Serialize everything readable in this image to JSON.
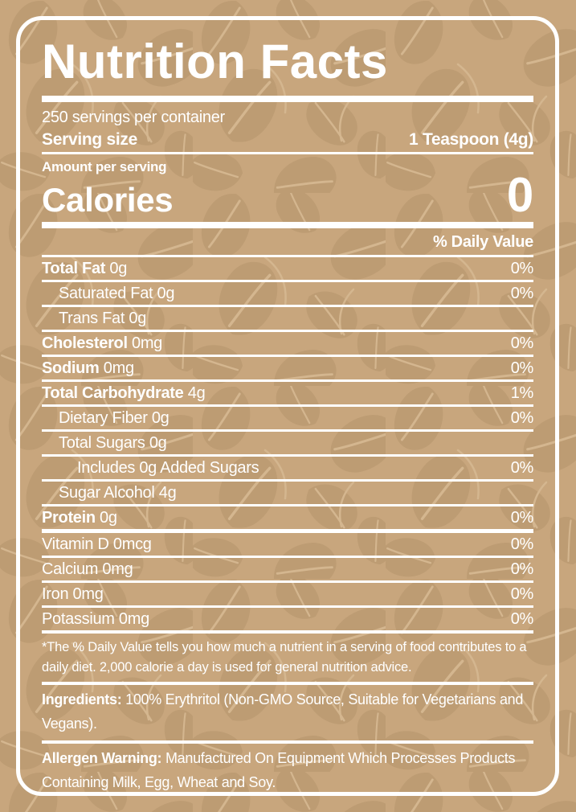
{
  "label": {
    "title": "Nutrition Facts",
    "servings_per_container": "250 servings per container",
    "serving_size_label": "Serving size",
    "serving_size_value": "1 Teaspoon (4g)",
    "amount_per_serving": "Amount per serving",
    "calories_label": "Calories",
    "calories_value": "0",
    "daily_value_header": "% Daily Value",
    "nutrients": [
      {
        "bold": "Total Fat",
        "rest": " 0g",
        "percent": "0%",
        "indent": 0,
        "sep": "thin"
      },
      {
        "bold": "",
        "rest": "Saturated Fat 0g",
        "percent": "0%",
        "indent": 1,
        "sep": "thin"
      },
      {
        "bold": "",
        "rest": "Trans Fat 0g",
        "percent": "",
        "indent": 1,
        "sep": "thin"
      },
      {
        "bold": "Cholesterol",
        "rest": " 0mg",
        "percent": "0%",
        "indent": 0,
        "sep": "thin"
      },
      {
        "bold": "Sodium",
        "rest": " 0mg",
        "percent": "0%",
        "indent": 0,
        "sep": "thin"
      },
      {
        "bold": "Total Carbohydrate",
        "rest": " 4g",
        "percent": "1%",
        "indent": 0,
        "sep": "thin"
      },
      {
        "bold": "",
        "rest": "Dietary Fiber 0g",
        "percent": "0%",
        "indent": 1,
        "sep": "thin"
      },
      {
        "bold": "",
        "rest": "Total Sugars 0g",
        "percent": "",
        "indent": 1,
        "sep": "thin"
      },
      {
        "bold": "",
        "rest": "Includes 0g Added Sugars",
        "percent": "0%",
        "indent": 2,
        "sep": "thin"
      },
      {
        "bold": "",
        "rest": "Sugar Alcohol 4g",
        "percent": "",
        "indent": 1,
        "sep": "thin"
      },
      {
        "bold": "Protein",
        "rest": " 0g",
        "percent": "0%",
        "indent": 0,
        "sep": "thick"
      },
      {
        "bold": "",
        "rest": "Vitamin D 0mcg",
        "percent": "0%",
        "indent": 0,
        "sep": "thin"
      },
      {
        "bold": "",
        "rest": "Calcium 0mg",
        "percent": "0%",
        "indent": 0,
        "sep": "thin"
      },
      {
        "bold": "",
        "rest": "Iron 0mg",
        "percent": "0%",
        "indent": 0,
        "sep": "thin"
      },
      {
        "bold": "",
        "rest": "Potassium 0mg",
        "percent": "0%",
        "indent": 0,
        "sep": "mid"
      }
    ],
    "footnote": "*The % Daily Value tells you how much a nutrient in a serving of food contributes to a daily diet. 2,000 calorie a day is used for general nutrition advice.",
    "ingredients_label": "Ingredients:",
    "ingredients_text": " 100% Erythritol (Non-GMO Source, Suitable for Vegetarians and Vegans).",
    "allergen_label": "Allergen Warning:",
    "allergen_text": " Manufactured On Equipment Which Processes Products Containing Milk, Egg, Wheat and Soy."
  },
  "colors": {
    "background": "#c8a67d",
    "leaf": "#bd9c73",
    "leaf_line": "#d4b68f",
    "text": "#ffffff"
  }
}
